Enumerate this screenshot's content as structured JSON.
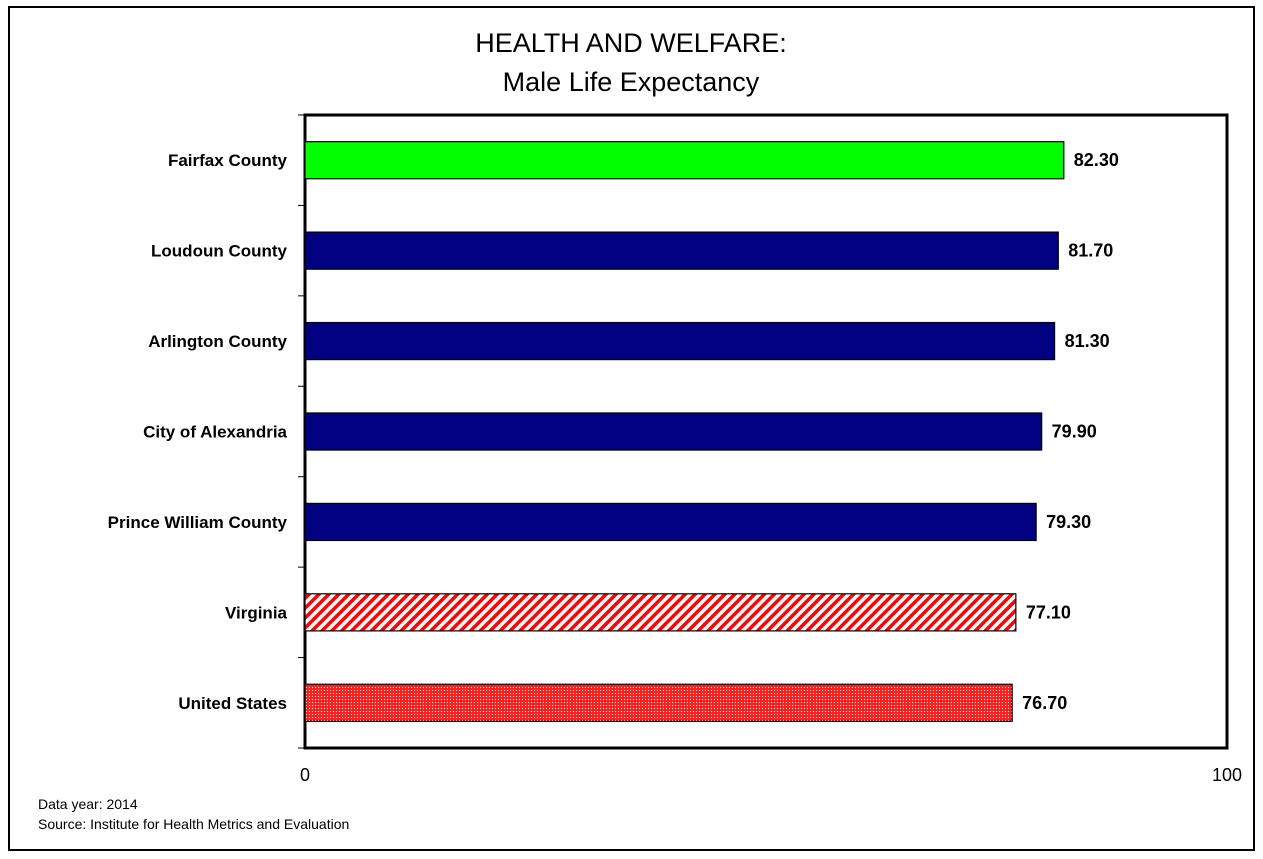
{
  "chart_data": {
    "type": "bar",
    "orientation": "horizontal",
    "title": "HEALTH AND WELFARE:",
    "subtitle": "Male Life Expectancy",
    "categories": [
      "Fairfax County",
      "Loudoun County",
      "Arlington County",
      "City of Alexandria",
      "Prince William County",
      "Virginia",
      "United States"
    ],
    "values": [
      82.3,
      81.7,
      81.3,
      79.9,
      79.3,
      77.1,
      76.7
    ],
    "value_labels": [
      "82.30",
      "81.70",
      "81.30",
      "79.90",
      "79.30",
      "77.10",
      "76.70"
    ],
    "bar_styles": [
      "solid",
      "solid",
      "solid",
      "solid",
      "solid",
      "diagonal-hatch",
      "dotted-hatch"
    ],
    "bar_colors": [
      "#00ff00",
      "#000080",
      "#000080",
      "#000080",
      "#000080",
      "#ff0000",
      "#ff0000"
    ],
    "xlim": [
      0,
      100
    ],
    "x_ticks": [
      "0",
      "100"
    ],
    "grid": false,
    "legend": "none"
  },
  "footer": {
    "data_year": "Data year: 2014",
    "source": "Source: Institute for Health Metrics and Evaluation"
  }
}
